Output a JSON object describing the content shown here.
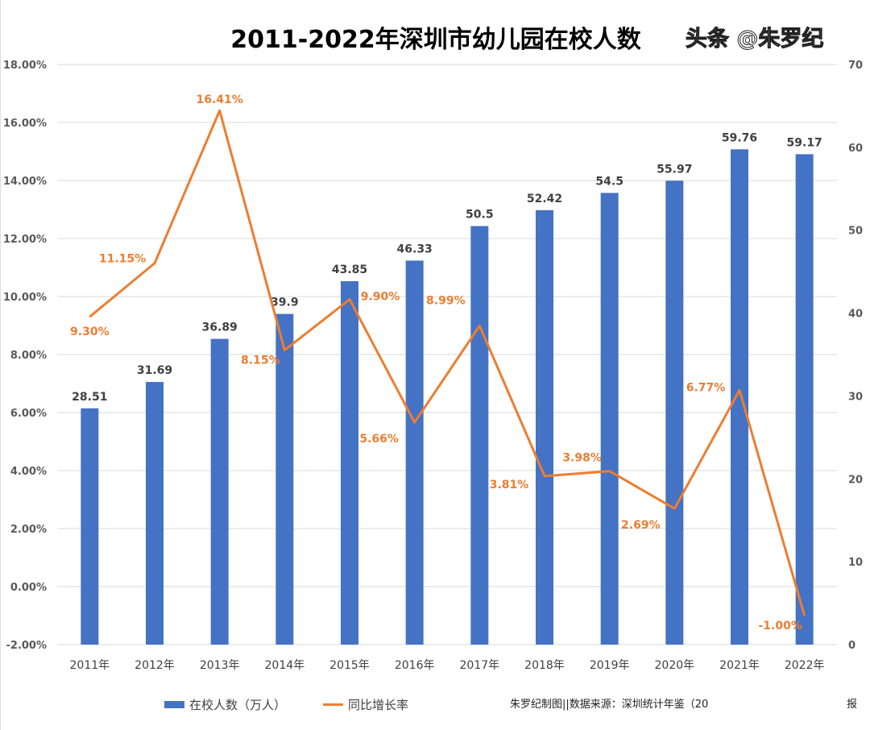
{
  "chart_data": {
    "type": "bar+line",
    "title": "2011-2022年深圳市幼儿园在校人数",
    "categories": [
      "2011年",
      "2012年",
      "2013年",
      "2014年",
      "2015年",
      "2016年",
      "2017年",
      "2018年",
      "2019年",
      "2020年",
      "2021年",
      "2022年"
    ],
    "series": [
      {
        "name": "在校人数（万人）",
        "type": "bar",
        "axis": "right",
        "color": "#4472C4",
        "values": [
          28.51,
          31.69,
          36.89,
          39.9,
          43.85,
          46.33,
          50.5,
          52.42,
          54.5,
          55.97,
          59.76,
          59.17
        ],
        "labels": [
          "28.51",
          "31.69",
          "36.89",
          "39.9",
          "43.85",
          "46.33",
          "50.5",
          "52.42",
          "54.5",
          "55.97",
          "59.76",
          "59.17"
        ]
      },
      {
        "name": "同比增长率",
        "type": "line",
        "axis": "left",
        "color": "#ED7D31",
        "values": [
          9.3,
          11.15,
          16.41,
          8.15,
          9.9,
          5.66,
          8.99,
          3.81,
          3.98,
          2.69,
          6.77,
          -1.0
        ],
        "labels": [
          "9.30%",
          "11.15%",
          "16.41%",
          "8.15%",
          "9.90%",
          "5.66%",
          "8.99%",
          "3.81%",
          "3.98%",
          "2.69%",
          "6.77%",
          "-1.00%"
        ]
      }
    ],
    "left_axis": {
      "ylim": [
        -2,
        18
      ],
      "ticks": [
        "-2.00%",
        "0.00%",
        "2.00%",
        "4.00%",
        "6.00%",
        "8.00%",
        "10.00%",
        "12.00%",
        "14.00%",
        "16.00%",
        "18.00%"
      ]
    },
    "right_axis": {
      "ylim": [
        0,
        70
      ],
      "ticks": [
        "0",
        "10",
        "20",
        "30",
        "40",
        "50",
        "60",
        "70"
      ]
    },
    "grid": true,
    "legend": "bottom-left"
  },
  "footer": {
    "source_visible": "朱罗纪制图||数据来源：深圳统计年鉴（20",
    "source_tail": "报",
    "watermark": "头条 @朱罗纪"
  }
}
